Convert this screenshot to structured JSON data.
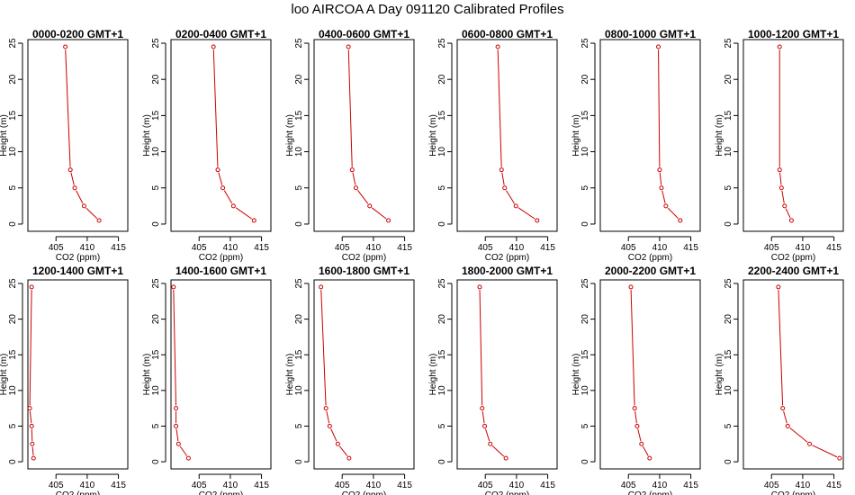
{
  "figure": {
    "title": "loo AIRCOA A  Day 091120  Calibrated Profiles"
  },
  "chart_data": [
    {
      "type": "line",
      "title": "0000-0200 GMT+1",
      "xlabel": "CO2 (ppm)",
      "ylabel": "Height (m)",
      "xlim": [
        400.5,
        416.5
      ],
      "ylim": [
        -1,
        25.5
      ],
      "xticks": [
        405,
        410,
        415
      ],
      "yticks": [
        0,
        5,
        10,
        15,
        20,
        25
      ],
      "series": [
        {
          "x": [
            411.9,
            409.5,
            408.0,
            407.3,
            406.5
          ],
          "y": [
            0.5,
            2.5,
            5,
            7.5,
            24.5
          ]
        }
      ]
    },
    {
      "type": "line",
      "title": "0200-0400 GMT+1",
      "xlabel": "CO2 (ppm)",
      "ylabel": "Height (m)",
      "xlim": [
        400.5,
        416.5
      ],
      "ylim": [
        -1,
        25.5
      ],
      "xticks": [
        405,
        410,
        415
      ],
      "yticks": [
        0,
        5,
        10,
        15,
        20,
        25
      ],
      "series": [
        {
          "x": [
            413.8,
            410.5,
            408.8,
            408.0,
            407.3
          ],
          "y": [
            0.5,
            2.5,
            5,
            7.5,
            24.5
          ]
        }
      ]
    },
    {
      "type": "line",
      "title": "0400-0600 GMT+1",
      "xlabel": "CO2 (ppm)",
      "ylabel": "Height (m)",
      "xlim": [
        400.5,
        416.5
      ],
      "ylim": [
        -1,
        25.5
      ],
      "xticks": [
        405,
        410,
        415
      ],
      "yticks": [
        0,
        5,
        10,
        15,
        20,
        25
      ],
      "series": [
        {
          "x": [
            412.4,
            409.4,
            407.2,
            406.6,
            406.0
          ],
          "y": [
            0.5,
            2.5,
            5,
            7.5,
            24.5
          ]
        }
      ]
    },
    {
      "type": "line",
      "title": "0600-0800 GMT+1",
      "xlabel": "CO2 (ppm)",
      "ylabel": "Height (m)",
      "xlim": [
        400.5,
        416.5
      ],
      "ylim": [
        -1,
        25.5
      ],
      "xticks": [
        405,
        410,
        415
      ],
      "yticks": [
        0,
        5,
        10,
        15,
        20,
        25
      ],
      "series": [
        {
          "x": [
            413.3,
            409.9,
            408.1,
            407.6,
            407.0
          ],
          "y": [
            0.5,
            2.5,
            5,
            7.5,
            24.5
          ]
        }
      ]
    },
    {
      "type": "line",
      "title": "0800-1000 GMT+1",
      "xlabel": "CO2 (ppm)",
      "ylabel": "Height (m)",
      "xlim": [
        400.5,
        416.5
      ],
      "ylim": [
        -1,
        25.5
      ],
      "xticks": [
        405,
        410,
        415
      ],
      "yticks": [
        0,
        5,
        10,
        15,
        20,
        25
      ],
      "series": [
        {
          "x": [
            413.3,
            411.0,
            410.3,
            410.0,
            409.8
          ],
          "y": [
            0.5,
            2.5,
            5,
            7.5,
            24.5
          ]
        }
      ]
    },
    {
      "type": "line",
      "title": "1000-1200 GMT+1",
      "xlabel": "CO2 (ppm)",
      "ylabel": "Height (m)",
      "xlim": [
        400.5,
        416.5
      ],
      "ylim": [
        -1,
        25.5
      ],
      "xticks": [
        405,
        410,
        415
      ],
      "yticks": [
        0,
        5,
        10,
        15,
        20,
        25
      ],
      "series": [
        {
          "x": [
            408.2,
            407.1,
            406.6,
            406.3,
            406.3
          ],
          "y": [
            0.5,
            2.5,
            5,
            7.5,
            24.5
          ]
        }
      ]
    },
    {
      "type": "line",
      "title": "1200-1400 GMT+1",
      "xlabel": "CO2 (ppm)",
      "ylabel": "Height (m)",
      "xlim": [
        400.5,
        416.5
      ],
      "ylim": [
        -1,
        25.5
      ],
      "xticks": [
        405,
        410,
        415
      ],
      "yticks": [
        0,
        5,
        10,
        15,
        20,
        25
      ],
      "series": [
        {
          "x": [
            401.4,
            401.2,
            401.1,
            400.8,
            401.1
          ],
          "y": [
            0.5,
            2.5,
            5,
            7.5,
            24.5
          ]
        }
      ]
    },
    {
      "type": "line",
      "title": "1400-1600 GMT+1",
      "xlabel": "CO2 (ppm)",
      "ylabel": "Height (m)",
      "xlim": [
        400.5,
        416.5
      ],
      "ylim": [
        -1,
        25.5
      ],
      "xticks": [
        405,
        410,
        415
      ],
      "yticks": [
        0,
        5,
        10,
        15,
        20,
        25
      ],
      "series": [
        {
          "x": [
            403.3,
            401.7,
            401.3,
            401.3,
            400.9
          ],
          "y": [
            0.5,
            2.5,
            5,
            7.5,
            24.5
          ]
        }
      ]
    },
    {
      "type": "line",
      "title": "1600-1800 GMT+1",
      "xlabel": "CO2 (ppm)",
      "ylabel": "Height (m)",
      "xlim": [
        400.5,
        416.5
      ],
      "ylim": [
        -1,
        25.5
      ],
      "xticks": [
        405,
        410,
        415
      ],
      "yticks": [
        0,
        5,
        10,
        15,
        20,
        25
      ],
      "series": [
        {
          "x": [
            406.1,
            404.3,
            403.0,
            402.4,
            401.6
          ],
          "y": [
            0.5,
            2.5,
            5,
            7.5,
            24.5
          ]
        }
      ]
    },
    {
      "type": "line",
      "title": "1800-2000 GMT+1",
      "xlabel": "CO2 (ppm)",
      "ylabel": "Height (m)",
      "xlim": [
        400.5,
        416.5
      ],
      "ylim": [
        -1,
        25.5
      ],
      "xticks": [
        405,
        410,
        415
      ],
      "yticks": [
        0,
        5,
        10,
        15,
        20,
        25
      ],
      "series": [
        {
          "x": [
            408.3,
            405.8,
            404.9,
            404.5,
            404.1
          ],
          "y": [
            0.5,
            2.5,
            5,
            7.5,
            24.5
          ]
        }
      ]
    },
    {
      "type": "line",
      "title": "2000-2200 GMT+1",
      "xlabel": "CO2 (ppm)",
      "ylabel": "Height (m)",
      "xlim": [
        400.5,
        416.5
      ],
      "ylim": [
        -1,
        25.5
      ],
      "xticks": [
        405,
        410,
        415
      ],
      "yticks": [
        0,
        5,
        10,
        15,
        20,
        25
      ],
      "series": [
        {
          "x": [
            408.4,
            407.1,
            406.4,
            406.0,
            405.4
          ],
          "y": [
            0.5,
            2.5,
            5,
            7.5,
            24.5
          ]
        }
      ]
    },
    {
      "type": "line",
      "title": "2200-2400 GMT+1",
      "xlabel": "CO2 (ppm)",
      "ylabel": "Height (m)",
      "xlim": [
        400.5,
        416.5
      ],
      "ylim": [
        -1,
        25.5
      ],
      "xticks": [
        405,
        410,
        415
      ],
      "yticks": [
        0,
        5,
        10,
        15,
        20,
        25
      ],
      "series": [
        {
          "x": [
            415.9,
            411.1,
            407.6,
            406.8,
            406.1
          ],
          "y": [
            0.5,
            2.5,
            5,
            7.5,
            24.5
          ]
        }
      ]
    }
  ],
  "style": {
    "line_color": "#cc0000",
    "axis_color": "#000000"
  }
}
